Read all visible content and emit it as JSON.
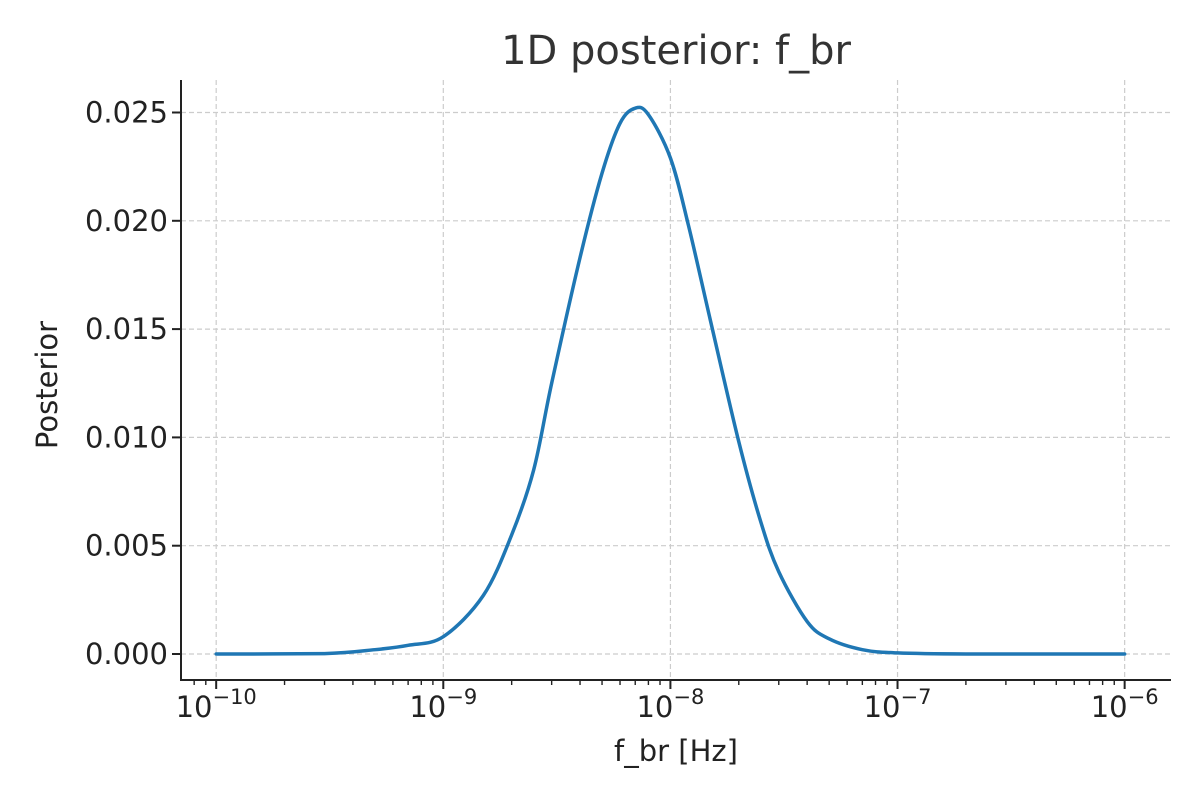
{
  "chart_data": {
    "type": "line",
    "title": "1D posterior: f_br",
    "xlabel": "f_br [Hz]",
    "ylabel": "Posterior",
    "x_scale": "log",
    "xlim": [
      7e-11,
      1.6e-06
    ],
    "ylim": [
      -0.0012,
      0.0265
    ],
    "grid": true,
    "x_ticks": [
      {
        "value": 1e-10,
        "base": "10",
        "exp": "−10"
      },
      {
        "value": 1e-09,
        "base": "10",
        "exp": "−9"
      },
      {
        "value": 1e-08,
        "base": "10",
        "exp": "−8"
      },
      {
        "value": 1e-07,
        "base": "10",
        "exp": "−7"
      },
      {
        "value": 1e-06,
        "base": "10",
        "exp": "−6"
      }
    ],
    "y_ticks": [
      {
        "value": 0.0,
        "label": "0.000"
      },
      {
        "value": 0.005,
        "label": "0.005"
      },
      {
        "value": 0.01,
        "label": "0.010"
      },
      {
        "value": 0.015,
        "label": "0.015"
      },
      {
        "value": 0.02,
        "label": "0.020"
      },
      {
        "value": 0.025,
        "label": "0.025"
      }
    ],
    "series": [
      {
        "color": "#1f77b4",
        "x": [
          1e-10,
          3e-10,
          5e-10,
          7e-10,
          1e-09,
          1.5e-09,
          2e-09,
          2.5e-09,
          3e-09,
          4e-09,
          5e-09,
          6e-09,
          7e-09,
          8e-09,
          1e-08,
          1.2e-08,
          1.5e-08,
          2e-08,
          2.5e-08,
          3e-08,
          4e-08,
          5e-08,
          7e-08,
          1e-07,
          2e-07,
          1e-06
        ],
        "y": [
          0.0,
          2e-05,
          0.0002,
          0.0004,
          0.0008,
          0.0027,
          0.0055,
          0.0085,
          0.0125,
          0.0183,
          0.0222,
          0.0245,
          0.0252,
          0.0249,
          0.0229,
          0.0198,
          0.0154,
          0.0098,
          0.0061,
          0.0038,
          0.0015,
          0.0007,
          0.0002,
          5e-05,
          0.0,
          0.0
        ]
      }
    ]
  }
}
